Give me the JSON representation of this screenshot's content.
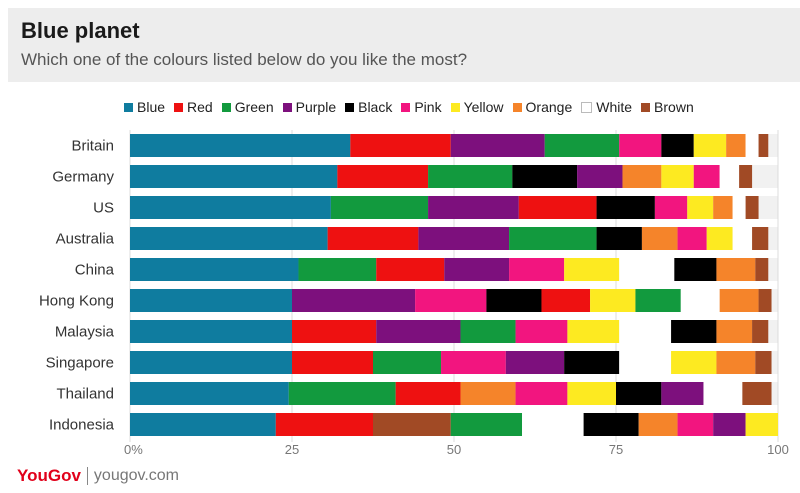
{
  "header": {
    "title": "Blue planet",
    "subtitle": "Which one of the colours listed below do you like the most?"
  },
  "footer": {
    "brand": "YouGov",
    "site": "yougov.com"
  },
  "chart_data": {
    "type": "bar",
    "orientation": "horizontal",
    "stacked": true,
    "title": "Blue planet",
    "subtitle": "Which one of the colours listed below do you like the most?",
    "xlim": [
      0,
      100
    ],
    "xticks": [
      "0%",
      "25",
      "50",
      "75",
      "100"
    ],
    "legend_position": "top",
    "categories": [
      "Britain",
      "Germany",
      "US",
      "Australia",
      "China",
      "Hong Kong",
      "Malaysia",
      "Singapore",
      "Thailand",
      "Indonesia"
    ],
    "rows": [
      {
        "label": "Britain",
        "segments": [
          [
            "Blue",
            34
          ],
          [
            "Red",
            15.5
          ],
          [
            "Purple",
            14.5
          ],
          [
            "Green",
            11.5
          ],
          [
            "Pink",
            6.5
          ],
          [
            "Black",
            5
          ],
          [
            "Yellow",
            5
          ],
          [
            "Orange",
            3
          ],
          [
            "White",
            2
          ],
          [
            "Brown",
            1.5
          ]
        ]
      },
      {
        "label": "Germany",
        "segments": [
          [
            "Blue",
            32
          ],
          [
            "Red",
            14
          ],
          [
            "Green",
            13
          ],
          [
            "Black",
            10
          ],
          [
            "Purple",
            7
          ],
          [
            "Orange",
            6
          ],
          [
            "Yellow",
            5
          ],
          [
            "Pink",
            4
          ],
          [
            "White",
            3
          ],
          [
            "Brown",
            2
          ]
        ]
      },
      {
        "label": "US",
        "segments": [
          [
            "Blue",
            31
          ],
          [
            "Green",
            15
          ],
          [
            "Purple",
            14
          ],
          [
            "Red",
            12
          ],
          [
            "Black",
            9
          ],
          [
            "Pink",
            5
          ],
          [
            "Yellow",
            4
          ],
          [
            "Orange",
            3
          ],
          [
            "White",
            2
          ],
          [
            "Brown",
            2
          ]
        ]
      },
      {
        "label": "Australia",
        "segments": [
          [
            "Blue",
            30.5
          ],
          [
            "Red",
            14
          ],
          [
            "Purple",
            14
          ],
          [
            "Green",
            13.5
          ],
          [
            "Black",
            7
          ],
          [
            "Orange",
            5.5
          ],
          [
            "Pink",
            4.5
          ],
          [
            "Yellow",
            4
          ],
          [
            "White",
            3
          ],
          [
            "Brown",
            2.5
          ]
        ]
      },
      {
        "label": "China",
        "segments": [
          [
            "Blue",
            26
          ],
          [
            "Green",
            12
          ],
          [
            "Red",
            10.5
          ],
          [
            "Purple",
            10
          ],
          [
            "Pink",
            8.5
          ],
          [
            "Yellow",
            8.5
          ],
          [
            "White",
            8.5
          ],
          [
            "Black",
            6.5
          ],
          [
            "Orange",
            6
          ],
          [
            "Brown",
            2
          ]
        ]
      },
      {
        "label": "Hong Kong",
        "segments": [
          [
            "Blue",
            25
          ],
          [
            "Purple",
            19
          ],
          [
            "Pink",
            11
          ],
          [
            "Black",
            8.5
          ],
          [
            "Red",
            7.5
          ],
          [
            "Yellow",
            7
          ],
          [
            "Green",
            7
          ],
          [
            "White",
            6
          ],
          [
            "Orange",
            6
          ],
          [
            "Brown",
            2
          ]
        ]
      },
      {
        "label": "Malaysia",
        "segments": [
          [
            "Blue",
            25
          ],
          [
            "Red",
            13
          ],
          [
            "Purple",
            13
          ],
          [
            "Green",
            8.5
          ],
          [
            "Pink",
            8
          ],
          [
            "Yellow",
            8
          ],
          [
            "White",
            8
          ],
          [
            "Black",
            7
          ],
          [
            "Orange",
            5.5
          ],
          [
            "Brown",
            2.5
          ]
        ]
      },
      {
        "label": "Singapore",
        "segments": [
          [
            "Blue",
            25
          ],
          [
            "Red",
            12.5
          ],
          [
            "Green",
            10.5
          ],
          [
            "Pink",
            10
          ],
          [
            "Purple",
            9
          ],
          [
            "Black",
            8.5
          ],
          [
            "White",
            8
          ],
          [
            "Yellow",
            7
          ],
          [
            "Orange",
            6
          ],
          [
            "Brown",
            2.5
          ]
        ]
      },
      {
        "label": "Thailand",
        "segments": [
          [
            "Blue",
            24.5
          ],
          [
            "Green",
            16.5
          ],
          [
            "Red",
            10
          ],
          [
            "Orange",
            8.5
          ],
          [
            "Pink",
            8
          ],
          [
            "Yellow",
            7.5
          ],
          [
            "Black",
            7
          ],
          [
            "Purple",
            6.5
          ],
          [
            "White",
            6
          ],
          [
            "Brown",
            4.5
          ]
        ]
      },
      {
        "label": "Indonesia",
        "segments": [
          [
            "Blue",
            22.5
          ],
          [
            "Red",
            15
          ],
          [
            "Brown",
            12
          ],
          [
            "Green",
            11
          ],
          [
            "White",
            9.5
          ],
          [
            "Black",
            8.5
          ],
          [
            "Orange",
            6
          ],
          [
            "Pink",
            5.5
          ],
          [
            "Purple",
            5
          ],
          [
            "Yellow",
            5
          ]
        ]
      }
    ],
    "series": [
      {
        "name": "Blue",
        "color": "#0f7c9f"
      },
      {
        "name": "Red",
        "color": "#ee1111"
      },
      {
        "name": "Green",
        "color": "#129a3e"
      },
      {
        "name": "Purple",
        "color": "#7d107d"
      },
      {
        "name": "Black",
        "color": "#000000"
      },
      {
        "name": "Pink",
        "color": "#f2157f"
      },
      {
        "name": "Yellow",
        "color": "#fdea21"
      },
      {
        "name": "Orange",
        "color": "#f5842a"
      },
      {
        "name": "White",
        "color": "#ffffff"
      },
      {
        "name": "Brown",
        "color": "#a14a25"
      }
    ]
  }
}
